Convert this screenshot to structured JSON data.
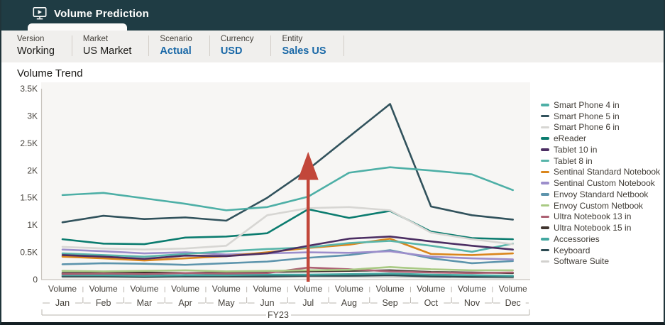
{
  "header": {
    "title": "Volume Prediction"
  },
  "pov": {
    "items": [
      {
        "label": "Version",
        "value": "Working"
      },
      {
        "label": "Market",
        "value": "US Market"
      },
      {
        "label": "Scenario",
        "value": "Actual"
      },
      {
        "label": "Currency",
        "value": "USD"
      },
      {
        "label": "Entity",
        "value": "Sales US"
      }
    ]
  },
  "chart_data": {
    "type": "line",
    "title": "Volume Trend",
    "ylim": [
      0,
      3500
    ],
    "grid": false,
    "legend_position": "right",
    "y_ticks": [
      {
        "label": "0",
        "value": 0
      },
      {
        "label": "0.5K",
        "value": 500
      },
      {
        "label": "1K",
        "value": 1000
      },
      {
        "label": "1.5K",
        "value": 1500
      },
      {
        "label": "2K",
        "value": 2000
      },
      {
        "label": "2.5K",
        "value": 2500
      },
      {
        "label": "3K",
        "value": 3000
      },
      {
        "label": "3.5K",
        "value": 3500
      }
    ],
    "x_axis": {
      "measure_label": "Volume",
      "categories": [
        "Jan",
        "Feb",
        "Mar",
        "Apr",
        "May",
        "Jun",
        "Jul",
        "Aug",
        "Sep",
        "Oct",
        "Nov",
        "Dec"
      ],
      "group_label": "FY23"
    },
    "series": [
      {
        "name": "Smart Phone 4 in",
        "color": "#4DAFA6",
        "values": [
          1550,
          1590,
          1490,
          1390,
          1270,
          1330,
          1520,
          1960,
          2060,
          2000,
          1930,
          1640
        ]
      },
      {
        "name": "Smart Phone 5 in",
        "color": "#31525C",
        "values": [
          1050,
          1170,
          1110,
          1140,
          1080,
          1500,
          2020,
          2620,
          3220,
          1340,
          1180,
          1100
        ]
      },
      {
        "name": "Smart Phone 6 in",
        "color": "#D7D6D3",
        "values": [
          600,
          570,
          550,
          570,
          620,
          1180,
          1310,
          1330,
          1270,
          860,
          740,
          650
        ]
      },
      {
        "name": "eReader",
        "color": "#0B7C6F",
        "values": [
          740,
          660,
          650,
          770,
          790,
          850,
          1290,
          1130,
          1260,
          880,
          760,
          740
        ]
      },
      {
        "name": "Tablet 10 in",
        "color": "#4C2E63",
        "values": [
          450,
          420,
          380,
          440,
          430,
          480,
          620,
          750,
          790,
          700,
          620,
          550
        ]
      },
      {
        "name": "Tablet 8 in",
        "color": "#58B5AA",
        "values": [
          480,
          450,
          420,
          470,
          520,
          560,
          590,
          670,
          710,
          620,
          510,
          660
        ]
      },
      {
        "name": "Sentinal Standard Notebook",
        "color": "#DA861C",
        "values": [
          420,
          390,
          350,
          390,
          430,
          500,
          580,
          640,
          750,
          470,
          450,
          480
        ]
      },
      {
        "name": "Sentinal Custom Notebook",
        "color": "#9C8ECB",
        "values": [
          550,
          520,
          480,
          500,
          460,
          480,
          500,
          490,
          520,
          420,
          390,
          370
        ]
      },
      {
        "name": "Envoy Standard Netbook",
        "color": "#5D94AC",
        "values": [
          280,
          300,
          290,
          270,
          300,
          330,
          400,
          450,
          540,
          390,
          300,
          340
        ]
      },
      {
        "name": "Envoy Custom Netbook",
        "color": "#A9CA84",
        "values": [
          160,
          150,
          160,
          170,
          150,
          160,
          170,
          180,
          230,
          190,
          170,
          170
        ]
      },
      {
        "name": "Ultra Notebook 13 in",
        "color": "#AC6173",
        "values": [
          100,
          110,
          100,
          120,
          110,
          120,
          220,
          190,
          150,
          130,
          120,
          130
        ]
      },
      {
        "name": "Ultra Notebook 15 in",
        "color": "#40342E",
        "values": [
          120,
          120,
          130,
          120,
          130,
          140,
          150,
          160,
          170,
          140,
          130,
          120
        ]
      },
      {
        "name": "Accessories",
        "color": "#43A8A1",
        "values": [
          80,
          80,
          70,
          80,
          80,
          90,
          90,
          100,
          110,
          90,
          80,
          70
        ]
      },
      {
        "name": "Keyboard",
        "color": "#2C4A52",
        "values": [
          60,
          60,
          50,
          60,
          60,
          60,
          70,
          70,
          80,
          60,
          50,
          50
        ]
      },
      {
        "name": "Software Suite",
        "color": "#D2D1CE",
        "values": [
          40,
          40,
          40,
          40,
          40,
          40,
          50,
          50,
          50,
          40,
          40,
          30
        ]
      }
    ],
    "annotation": {
      "shape": "up-arrow",
      "category": "Jul",
      "color": "#C2473A"
    }
  }
}
